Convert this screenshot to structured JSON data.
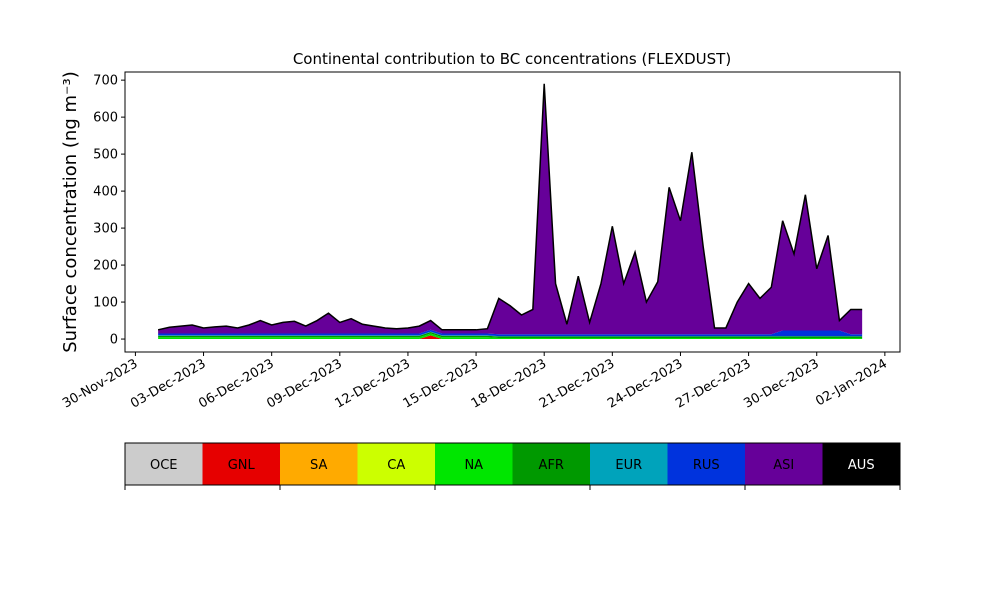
{
  "chart_data": {
    "type": "stacked_area",
    "title": "Continental contribution to BC concentrations (FLEXDUST)",
    "ylabel": "Surface concentration (ng m⁻³)",
    "x": [
      "2023-12-01T00:00",
      "2023-12-01T12:00",
      "2023-12-02T00:00",
      "2023-12-02T12:00",
      "2023-12-03T00:00",
      "2023-12-03T12:00",
      "2023-12-04T00:00",
      "2023-12-04T12:00",
      "2023-12-05T00:00",
      "2023-12-05T12:00",
      "2023-12-06T00:00",
      "2023-12-06T12:00",
      "2023-12-07T00:00",
      "2023-12-07T12:00",
      "2023-12-08T00:00",
      "2023-12-08T12:00",
      "2023-12-09T00:00",
      "2023-12-09T12:00",
      "2023-12-10T00:00",
      "2023-12-10T12:00",
      "2023-12-11T00:00",
      "2023-12-11T12:00",
      "2023-12-12T00:00",
      "2023-12-12T12:00",
      "2023-12-13T00:00",
      "2023-12-13T12:00",
      "2023-12-14T00:00",
      "2023-12-14T12:00",
      "2023-12-15T00:00",
      "2023-12-15T12:00",
      "2023-12-16T00:00",
      "2023-12-16T12:00",
      "2023-12-17T00:00",
      "2023-12-17T12:00",
      "2023-12-18T00:00",
      "2023-12-18T12:00",
      "2023-12-19T00:00",
      "2023-12-19T12:00",
      "2023-12-20T00:00",
      "2023-12-20T12:00",
      "2023-12-21T00:00",
      "2023-12-21T12:00",
      "2023-12-22T00:00",
      "2023-12-22T12:00",
      "2023-12-23T00:00",
      "2023-12-23T12:00",
      "2023-12-24T00:00",
      "2023-12-24T12:00",
      "2023-12-25T00:00",
      "2023-12-25T12:00",
      "2023-12-26T00:00",
      "2023-12-26T12:00",
      "2023-12-27T00:00",
      "2023-12-27T12:00",
      "2023-12-28T00:00",
      "2023-12-28T12:00",
      "2023-12-29T00:00",
      "2023-12-29T12:00",
      "2023-12-30T00:00",
      "2023-12-30T12:00",
      "2023-12-31T00:00",
      "2023-12-31T12:00",
      "2024-01-01T00:00"
    ],
    "series": [
      {
        "name": "OCE",
        "color": "#cccccc",
        "values": [
          0,
          0,
          0,
          0,
          0,
          0,
          0,
          0,
          0,
          0,
          0,
          0,
          0,
          0,
          0,
          0,
          0,
          0,
          0,
          0,
          0,
          0,
          0,
          0,
          0,
          0,
          0,
          0,
          0,
          0,
          0,
          0,
          0,
          0,
          0,
          0,
          0,
          0,
          0,
          0,
          0,
          0,
          0,
          0,
          0,
          0,
          0,
          0,
          0,
          0,
          0,
          0,
          0,
          0,
          0,
          0,
          0,
          0,
          0,
          0,
          0,
          0,
          0
        ]
      },
      {
        "name": "GNL",
        "color": "#e60000",
        "values": [
          0,
          0,
          0,
          0,
          0,
          0,
          0,
          0,
          0,
          0,
          0,
          0,
          0,
          0,
          0,
          0,
          0,
          0,
          0,
          0,
          0,
          0,
          0,
          0,
          10,
          0,
          0,
          0,
          0,
          0,
          0,
          0,
          0,
          0,
          0,
          0,
          0,
          0,
          0,
          0,
          0,
          0,
          0,
          0,
          0,
          0,
          0,
          0,
          0,
          0,
          0,
          0,
          0,
          0,
          0,
          0,
          0,
          0,
          0,
          0,
          0,
          0,
          0
        ]
      },
      {
        "name": "SA",
        "color": "#ffaa00",
        "values": [
          0,
          0,
          0,
          0,
          0,
          0,
          0,
          0,
          0,
          0,
          0,
          0,
          0,
          0,
          0,
          0,
          0,
          0,
          0,
          0,
          0,
          0,
          0,
          0,
          0,
          0,
          0,
          0,
          0,
          0,
          0,
          0,
          0,
          0,
          0,
          0,
          0,
          0,
          0,
          0,
          0,
          0,
          0,
          0,
          0,
          0,
          0,
          0,
          0,
          0,
          0,
          0,
          0,
          0,
          0,
          0,
          0,
          0,
          0,
          0,
          0,
          0,
          0
        ]
      },
      {
        "name": "CA",
        "color": "#ccff00",
        "values": [
          0,
          0,
          0,
          0,
          0,
          0,
          0,
          0,
          0,
          0,
          0,
          0,
          0,
          0,
          0,
          0,
          0,
          0,
          0,
          0,
          0,
          0,
          0,
          0,
          0,
          0,
          0,
          0,
          0,
          0,
          0,
          0,
          0,
          0,
          0,
          0,
          0,
          0,
          0,
          0,
          0,
          0,
          0,
          0,
          0,
          0,
          0,
          0,
          0,
          0,
          0,
          0,
          0,
          0,
          0,
          0,
          0,
          0,
          0,
          0,
          0,
          0,
          0
        ]
      },
      {
        "name": "NA",
        "color": "#00e600",
        "values": [
          5,
          5,
          5,
          5,
          5,
          5,
          5,
          5,
          5,
          5,
          5,
          5,
          5,
          5,
          5,
          5,
          5,
          5,
          5,
          5,
          5,
          5,
          5,
          5,
          5,
          5,
          5,
          5,
          5,
          5,
          3,
          3,
          3,
          3,
          3,
          3,
          3,
          3,
          3,
          3,
          3,
          3,
          3,
          3,
          3,
          3,
          3,
          3,
          3,
          3,
          3,
          3,
          3,
          3,
          3,
          3,
          3,
          3,
          3,
          3,
          3,
          3,
          3
        ]
      },
      {
        "name": "AFR",
        "color": "#009900",
        "values": [
          4,
          4,
          4,
          4,
          4,
          4,
          4,
          4,
          4,
          4,
          4,
          4,
          4,
          4,
          4,
          4,
          4,
          4,
          4,
          4,
          4,
          4,
          4,
          4,
          4,
          4,
          4,
          4,
          4,
          4,
          4,
          4,
          4,
          4,
          4,
          4,
          4,
          4,
          4,
          4,
          4,
          4,
          4,
          4,
          4,
          4,
          4,
          4,
          4,
          4,
          4,
          4,
          4,
          4,
          4,
          4,
          4,
          4,
          4,
          4,
          4,
          4,
          4
        ]
      },
      {
        "name": "EUR",
        "color": "#00a3bb",
        "values": [
          1,
          1,
          1,
          1,
          1,
          1,
          1,
          1,
          1,
          1,
          1,
          1,
          1,
          1,
          1,
          1,
          1,
          1,
          1,
          1,
          1,
          1,
          1,
          1,
          1,
          1,
          1,
          1,
          1,
          1,
          1,
          1,
          1,
          1,
          1,
          1,
          1,
          1,
          1,
          1,
          1,
          1,
          1,
          1,
          1,
          1,
          1,
          1,
          1,
          1,
          1,
          1,
          1,
          1,
          1,
          1,
          1,
          1,
          1,
          1,
          1,
          1,
          1
        ]
      },
      {
        "name": "RUS",
        "color": "#0033dd",
        "values": [
          5,
          5,
          5,
          5,
          5,
          5,
          5,
          5,
          5,
          5,
          5,
          5,
          5,
          5,
          5,
          5,
          5,
          5,
          5,
          5,
          5,
          5,
          5,
          5,
          5,
          5,
          5,
          5,
          5,
          5,
          5,
          5,
          5,
          5,
          5,
          5,
          5,
          5,
          5,
          5,
          5,
          5,
          5,
          5,
          5,
          5,
          5,
          5,
          5,
          5,
          5,
          5,
          5,
          5,
          5,
          15,
          15,
          15,
          15,
          15,
          15,
          5,
          5
        ]
      },
      {
        "name": "ASI",
        "color": "#660099",
        "values": [
          10,
          17,
          20,
          23,
          15,
          18,
          20,
          15,
          23,
          35,
          23,
          30,
          33,
          20,
          35,
          55,
          30,
          40,
          25,
          20,
          15,
          13,
          15,
          20,
          25,
          10,
          10,
          10,
          10,
          13,
          97,
          77,
          52,
          67,
          677,
          137,
          27,
          157,
          32,
          137,
          292,
          137,
          222,
          87,
          142,
          397,
          307,
          492,
          237,
          17,
          17,
          87,
          137,
          97,
          127,
          297,
          207,
          367,
          167,
          257,
          27,
          67,
          67
        ]
      },
      {
        "name": "AUS",
        "color": "#000000",
        "values": [
          0,
          0,
          0,
          0,
          0,
          0,
          0,
          0,
          0,
          0,
          0,
          0,
          0,
          0,
          0,
          0,
          0,
          0,
          0,
          0,
          0,
          0,
          0,
          0,
          0,
          0,
          0,
          0,
          0,
          0,
          0,
          0,
          0,
          0,
          0,
          0,
          0,
          0,
          0,
          0,
          0,
          0,
          0,
          0,
          0,
          0,
          0,
          0,
          0,
          0,
          0,
          0,
          0,
          0,
          0,
          0,
          0,
          0,
          0,
          0,
          0,
          0,
          0
        ]
      }
    ],
    "xlim": [
      "2023-11-29T13:00",
      "2024-01-02T16:00"
    ],
    "xticks": [
      {
        "value": "2023-11-30T00:00",
        "label": "30-Nov-2023"
      },
      {
        "value": "2023-12-03T00:00",
        "label": "03-Dec-2023"
      },
      {
        "value": "2023-12-06T00:00",
        "label": "06-Dec-2023"
      },
      {
        "value": "2023-12-09T00:00",
        "label": "09-Dec-2023"
      },
      {
        "value": "2023-12-12T00:00",
        "label": "12-Dec-2023"
      },
      {
        "value": "2023-12-15T00:00",
        "label": "15-Dec-2023"
      },
      {
        "value": "2023-12-18T00:00",
        "label": "18-Dec-2023"
      },
      {
        "value": "2023-12-21T00:00",
        "label": "21-Dec-2023"
      },
      {
        "value": "2023-12-24T00:00",
        "label": "24-Dec-2023"
      },
      {
        "value": "2023-12-27T00:00",
        "label": "27-Dec-2023"
      },
      {
        "value": "2023-12-30T00:00",
        "label": "30-Dec-2023"
      },
      {
        "value": "2024-01-02T00:00",
        "label": "02-Jan-2024"
      }
    ],
    "ylim": [
      -35,
      722
    ],
    "yticks": [
      0,
      100,
      200,
      300,
      400,
      500,
      600,
      700
    ]
  }
}
